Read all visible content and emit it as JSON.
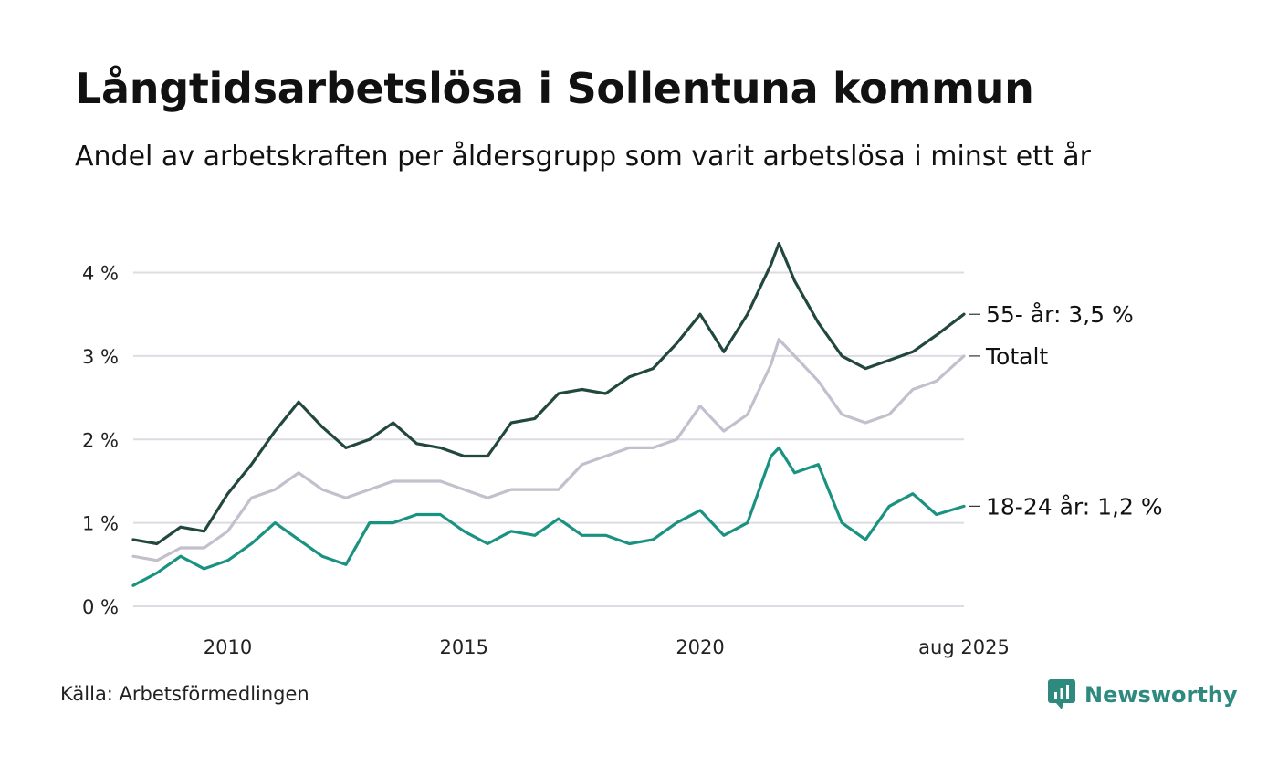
{
  "title": "Långtidsarbetslösa i Sollentuna kommun",
  "subtitle": "Andel av arbetskraften per åldersgrupp som varit arbetslösa i minst ett år",
  "source": "Källa: Arbetsförmedlingen",
  "brand": "Newsworthy",
  "colors": {
    "older": "#22473e",
    "total": "#c3bfcc",
    "young": "#1a9282",
    "grid": "#dcdce2",
    "brand": "#2e8a7f"
  },
  "chart_data": {
    "type": "line",
    "y_unit": "%",
    "ylim": [
      0,
      4.4
    ],
    "xlim": [
      "2008-01",
      "2025-08"
    ],
    "y_ticks": [
      {
        "value": 0,
        "label": "0 %"
      },
      {
        "value": 1,
        "label": "1 %"
      },
      {
        "value": 2,
        "label": "2 %"
      },
      {
        "value": 3,
        "label": "3 %"
      },
      {
        "value": 4,
        "label": "4 %"
      }
    ],
    "x_ticks": [
      {
        "value": "2010-01",
        "label": "2010"
      },
      {
        "value": "2015-01",
        "label": "2015"
      },
      {
        "value": "2020-01",
        "label": "2020"
      },
      {
        "value": "2025-08",
        "label": "aug 2025"
      }
    ],
    "grid": true,
    "legend": "end-labels",
    "series": [
      {
        "key": "older",
        "name": "55- år",
        "end_label": "55- år: 3,5 %",
        "x": [
          "2008-01",
          "2008-07",
          "2009-01",
          "2009-07",
          "2010-01",
          "2010-07",
          "2011-01",
          "2011-07",
          "2012-01",
          "2012-07",
          "2013-01",
          "2013-07",
          "2014-01",
          "2014-07",
          "2015-01",
          "2015-07",
          "2016-01",
          "2016-07",
          "2017-01",
          "2017-07",
          "2018-01",
          "2018-07",
          "2019-01",
          "2019-07",
          "2020-01",
          "2020-07",
          "2021-01",
          "2021-07",
          "2021-09",
          "2022-01",
          "2022-07",
          "2023-01",
          "2023-07",
          "2024-01",
          "2024-07",
          "2025-01",
          "2025-08"
        ],
        "values": [
          0.8,
          0.75,
          0.95,
          0.9,
          1.35,
          1.7,
          2.1,
          2.45,
          2.15,
          1.9,
          2.0,
          2.2,
          1.95,
          1.9,
          1.8,
          1.8,
          2.2,
          2.25,
          2.55,
          2.6,
          2.55,
          2.75,
          2.85,
          3.15,
          3.5,
          3.05,
          3.5,
          4.1,
          4.35,
          3.9,
          3.4,
          3.0,
          2.85,
          2.95,
          3.05,
          3.25,
          3.5
        ]
      },
      {
        "key": "total",
        "name": "Totalt",
        "end_label": "Totalt",
        "x": [
          "2008-01",
          "2008-07",
          "2009-01",
          "2009-07",
          "2010-01",
          "2010-07",
          "2011-01",
          "2011-07",
          "2012-01",
          "2012-07",
          "2013-01",
          "2013-07",
          "2014-01",
          "2014-07",
          "2015-01",
          "2015-07",
          "2016-01",
          "2016-07",
          "2017-01",
          "2017-07",
          "2018-01",
          "2018-07",
          "2019-01",
          "2019-07",
          "2020-01",
          "2020-07",
          "2021-01",
          "2021-07",
          "2021-09",
          "2022-01",
          "2022-07",
          "2023-01",
          "2023-07",
          "2024-01",
          "2024-07",
          "2025-01",
          "2025-08"
        ],
        "values": [
          0.6,
          0.55,
          0.7,
          0.7,
          0.9,
          1.3,
          1.4,
          1.6,
          1.4,
          1.3,
          1.4,
          1.5,
          1.5,
          1.5,
          1.4,
          1.3,
          1.4,
          1.4,
          1.4,
          1.7,
          1.8,
          1.9,
          1.9,
          2.0,
          2.4,
          2.1,
          2.3,
          2.9,
          3.2,
          3.0,
          2.7,
          2.3,
          2.2,
          2.3,
          2.6,
          2.7,
          3.0
        ]
      },
      {
        "key": "young",
        "name": "18-24 år",
        "end_label": "18-24 år: 1,2 %",
        "x": [
          "2008-01",
          "2008-07",
          "2009-01",
          "2009-07",
          "2010-01",
          "2010-07",
          "2011-01",
          "2011-07",
          "2012-01",
          "2012-07",
          "2013-01",
          "2013-07",
          "2014-01",
          "2014-07",
          "2015-01",
          "2015-07",
          "2016-01",
          "2016-07",
          "2017-01",
          "2017-07",
          "2018-01",
          "2018-07",
          "2019-01",
          "2019-07",
          "2020-01",
          "2020-07",
          "2021-01",
          "2021-07",
          "2021-09",
          "2022-01",
          "2022-07",
          "2023-01",
          "2023-07",
          "2024-01",
          "2024-07",
          "2025-01",
          "2025-08"
        ],
        "values": [
          0.25,
          0.4,
          0.6,
          0.45,
          0.55,
          0.75,
          1.0,
          0.8,
          0.6,
          0.5,
          1.0,
          1.0,
          1.1,
          1.1,
          0.9,
          0.75,
          0.9,
          0.85,
          1.05,
          0.85,
          0.85,
          0.75,
          0.8,
          1.0,
          1.15,
          0.85,
          1.0,
          1.8,
          1.9,
          1.6,
          1.7,
          1.0,
          0.8,
          1.2,
          1.35,
          1.1,
          1.2
        ]
      }
    ]
  }
}
